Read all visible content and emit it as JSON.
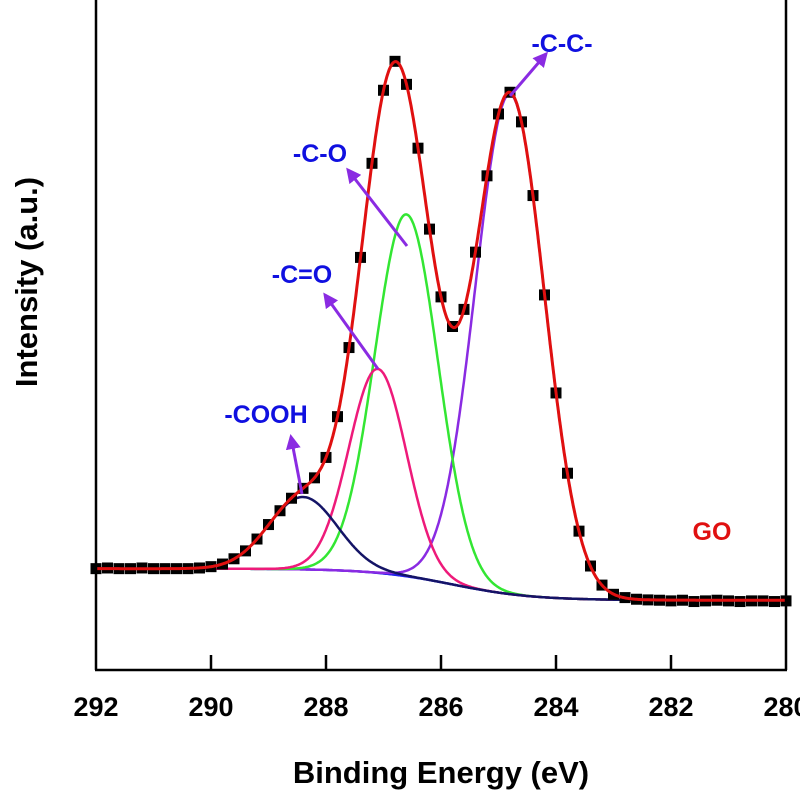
{
  "chart_data": {
    "type": "line",
    "title": "",
    "xlabel": "Binding Energy (eV)",
    "ylabel": "Intensity (a.u.)",
    "xlim": [
      292,
      280
    ],
    "x_reversed": true,
    "ylim": [
      0,
      100
    ],
    "y_ticks_shown": false,
    "x_ticks": [
      292,
      290,
      288,
      286,
      284,
      282,
      280
    ],
    "x_tick_labels": [
      "292",
      "290",
      "288",
      "286",
      "284",
      "282",
      "280"
    ],
    "grid": false,
    "sample_label": "GO",
    "colors": {
      "data": "#000000",
      "envelope": "#e01010",
      "baseline": "#2020ee",
      "C-C": "#8a2be2",
      "C-O": "#33e633",
      "C=O": "#ee1a7a",
      "COOH": "#141466",
      "arrow": "#8a2be2",
      "annotation": "#1010e0",
      "sample_label": "#e01010"
    },
    "components": [
      {
        "label": "-C-C-",
        "center_eV": 284.8,
        "height": 76,
        "sigma_eV": 0.6
      },
      {
        "label": "-C-O",
        "center_eV": 286.6,
        "height": 55,
        "sigma_eV": 0.55
      },
      {
        "label": "-C=O",
        "center_eV": 287.1,
        "height": 31,
        "sigma_eV": 0.5
      },
      {
        "label": "-COOH",
        "center_eV": 288.4,
        "height": 11,
        "sigma_eV": 0.6
      }
    ],
    "baseline": {
      "high_energy_level": 15.1,
      "low_energy_level": 10.3,
      "step_center_eV": 285.8
    },
    "measured": {
      "x": [
        292.0,
        291.8,
        291.6,
        291.4,
        291.2,
        291.0,
        290.8,
        290.6,
        290.4,
        290.2,
        290.0,
        289.8,
        289.6,
        289.4,
        289.2,
        289.0,
        288.8,
        288.6,
        288.4,
        288.2,
        288.0,
        287.8,
        287.6,
        287.4,
        287.2,
        287.0,
        286.8,
        286.6,
        286.4,
        286.2,
        286.0,
        285.8,
        285.6,
        285.4,
        285.2,
        285.0,
        284.8,
        284.6,
        284.4,
        284.2,
        284.0,
        283.8,
        283.6,
        283.4,
        283.2,
        283.0,
        282.8,
        282.6,
        282.4,
        282.2,
        282.0,
        281.8,
        281.6,
        281.4,
        281.2,
        281.0,
        280.8,
        280.6,
        280.4,
        280.2,
        280.0
      ],
      "y": [
        15.1,
        15.2,
        15.1,
        15.1,
        15.2,
        15.1,
        15.1,
        15.1,
        15.1,
        15.2,
        15.4,
        15.8,
        16.6,
        17.8,
        19.6,
        21.8,
        23.9,
        25.8,
        27.3,
        28.9,
        32.0,
        38.2,
        48.7,
        62.4,
        76.7,
        87.8,
        92.2,
        88.7,
        79.0,
        66.7,
        56.4,
        51.9,
        54.5,
        63.2,
        74.8,
        84.2,
        87.5,
        83.0,
        71.8,
        56.7,
        41.8,
        29.6,
        20.8,
        15.5,
        12.6,
        11.2,
        10.7,
        10.45,
        10.35,
        10.3,
        10.2,
        10.3,
        10.1,
        10.2,
        10.3,
        10.2,
        10.1,
        10.2,
        10.2,
        10.1,
        10.2
      ]
    }
  }
}
